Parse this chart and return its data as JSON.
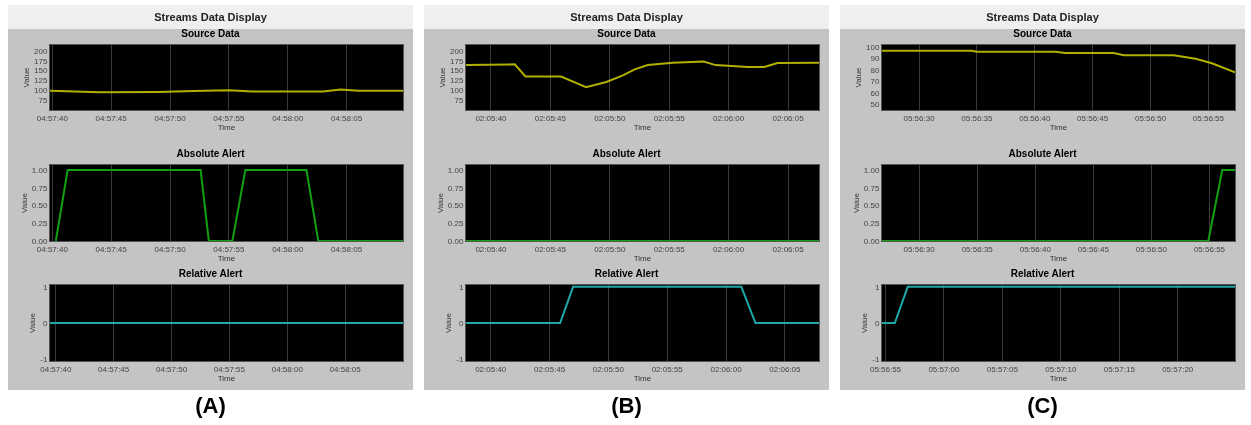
{
  "chart_data": [
    {
      "type": "line",
      "title": "Source Data",
      "xlabel": "Time",
      "ylabel": "Value",
      "annotations": [
        "Streams Data Display"
      ],
      "grid": "x",
      "xlim": [
        4.961056,
        4.969389
      ],
      "xticks": [
        {
          "value": 4.961111,
          "label": "04:57:40"
        },
        {
          "value": 4.9625,
          "label": "04:57:45"
        },
        {
          "value": 4.963889,
          "label": "04:57:50"
        },
        {
          "value": 4.965278,
          "label": "04:57:55"
        },
        {
          "value": 4.966667,
          "label": "04:58:00"
        },
        {
          "value": 4.968056,
          "label": "04:58:05"
        }
      ],
      "ylim": [
        50,
        215
      ],
      "yticks": [
        75,
        100,
        125,
        150,
        175,
        200
      ],
      "series": [
        {
          "color": "#b0b000",
          "x": [
            4.961056,
            4.962222,
            4.963611,
            4.964444,
            4.965278,
            4.965833,
            4.9675,
            4.967917,
            4.968333,
            4.969389
          ],
          "values": [
            99,
            95,
            96,
            98,
            100,
            97,
            97,
            102,
            99,
            99
          ]
        }
      ]
    },
    {
      "type": "line",
      "title": "Absolute Alert",
      "xlabel": "Time",
      "ylabel": "Value",
      "grid": "x",
      "xlim": [
        4.961056,
        4.969389
      ],
      "xticks": [
        {
          "value": 4.961111,
          "label": "04:57:40"
        },
        {
          "value": 4.9625,
          "label": "04:57:45"
        },
        {
          "value": 4.963889,
          "label": "04:57:50"
        },
        {
          "value": 4.965278,
          "label": "04:57:55"
        },
        {
          "value": 4.966667,
          "label": "04:58:00"
        },
        {
          "value": 4.968056,
          "label": "04:58:05"
        }
      ],
      "ylim": [
        0,
        1.07
      ],
      "yticks": [
        {
          "value": 0,
          "label": "0.00"
        },
        {
          "value": 0.25,
          "label": "0.25"
        },
        {
          "value": 0.5,
          "label": "0.50"
        },
        {
          "value": 0.75,
          "label": "0.75"
        },
        {
          "value": 1,
          "label": "1.00"
        }
      ],
      "series": [
        {
          "color": "#10a010",
          "x": [
            4.961194,
            4.961472,
            4.964611,
            4.964806,
            4.965361,
            4.965667,
            4.967111,
            4.967389,
            4.969389
          ],
          "values": [
            0,
            1,
            1,
            0,
            0,
            1,
            1,
            0,
            0
          ]
        }
      ]
    },
    {
      "type": "line",
      "title": "Relative Alert",
      "xlabel": "Time",
      "ylabel": "Value",
      "annotations": [
        "(A)"
      ],
      "grid": "x",
      "xlim": [
        4.960972,
        4.969444
      ],
      "xticks": [
        {
          "value": 4.961111,
          "label": "04:57:40"
        },
        {
          "value": 4.9625,
          "label": "04:57:45"
        },
        {
          "value": 4.963889,
          "label": "04:57:50"
        },
        {
          "value": 4.965278,
          "label": "04:57:55"
        },
        {
          "value": 4.966667,
          "label": "04:58:00"
        },
        {
          "value": 4.968056,
          "label": "04:58:05"
        }
      ],
      "ylim": [
        -1.05,
        1.05
      ],
      "yticks": [
        -1,
        0,
        1
      ],
      "series": [
        {
          "color": "#20a8a8",
          "x": [
            4.960972,
            4.969444
          ],
          "values": [
            0,
            0
          ]
        }
      ]
    },
    {
      "type": "line",
      "title": "Source Data",
      "xlabel": "Time",
      "ylabel": "Value",
      "annotations": [
        "Streams Data Display"
      ],
      "grid": "x",
      "xlim": [
        2.093861,
        2.102111
      ],
      "xticks": [
        {
          "value": 2.094444,
          "label": "02:05:40"
        },
        {
          "value": 2.095833,
          "label": "02:05:45"
        },
        {
          "value": 2.097222,
          "label": "02:05:50"
        },
        {
          "value": 2.098611,
          "label": "02:05:55"
        },
        {
          "value": 2.1,
          "label": "02:06:00"
        },
        {
          "value": 2.101389,
          "label": "02:06:05"
        }
      ],
      "ylim": [
        50,
        215
      ],
      "yticks": [
        75,
        100,
        125,
        150,
        175,
        200
      ],
      "series": [
        {
          "color": "#b0b000",
          "x": [
            2.093861,
            2.095,
            2.09525,
            2.096083,
            2.096667,
            2.097139,
            2.097528,
            2.097806,
            2.098111,
            2.098694,
            2.099417,
            2.099694,
            2.100444,
            2.100833,
            2.101139,
            2.102111
          ],
          "values": [
            164,
            166,
            135,
            135,
            108,
            121,
            138,
            153,
            164,
            170,
            173,
            164,
            159,
            159,
            169,
            170
          ]
        }
      ]
    },
    {
      "type": "line",
      "title": "Absolute Alert",
      "xlabel": "Time",
      "ylabel": "Value",
      "grid": "x",
      "xlim": [
        2.093861,
        2.102111
      ],
      "xticks": [
        {
          "value": 2.094444,
          "label": "02:05:40"
        },
        {
          "value": 2.095833,
          "label": "02:05:45"
        },
        {
          "value": 2.097222,
          "label": "02:05:50"
        },
        {
          "value": 2.098611,
          "label": "02:05:55"
        },
        {
          "value": 2.1,
          "label": "02:06:00"
        },
        {
          "value": 2.101389,
          "label": "02:06:05"
        }
      ],
      "ylim": [
        0,
        1.07
      ],
      "yticks": [
        {
          "value": 0,
          "label": "0.00"
        },
        {
          "value": 0.25,
          "label": "0.25"
        },
        {
          "value": 0.5,
          "label": "0.50"
        },
        {
          "value": 0.75,
          "label": "0.75"
        },
        {
          "value": 1,
          "label": "1.00"
        }
      ],
      "series": [
        {
          "color": "#10a010",
          "x": [
            2.093861,
            2.102111
          ],
          "values": [
            0,
            0
          ]
        }
      ]
    },
    {
      "type": "line",
      "title": "Relative Alert",
      "xlabel": "Time",
      "ylabel": "Value",
      "annotations": [
        "(B)"
      ],
      "grid": "x",
      "xlim": [
        2.093861,
        2.102194
      ],
      "xticks": [
        {
          "value": 2.094444,
          "label": "02:05:40"
        },
        {
          "value": 2.095833,
          "label": "02:05:45"
        },
        {
          "value": 2.097222,
          "label": "02:05:50"
        },
        {
          "value": 2.098611,
          "label": "02:05:55"
        },
        {
          "value": 2.1,
          "label": "02:06:00"
        },
        {
          "value": 2.101389,
          "label": "02:06:05"
        }
      ],
      "ylim": [
        -1.05,
        1.05
      ],
      "yticks": [
        -1,
        0,
        1
      ],
      "series": [
        {
          "color": "#20a8a8",
          "x": [
            2.093861,
            2.096083,
            2.096389,
            2.100361,
            2.100694,
            2.102194
          ],
          "values": [
            0,
            0,
            1,
            1,
            0,
            0
          ]
        }
      ]
    },
    {
      "type": "line",
      "title": "Source Data",
      "xlabel": "Time",
      "ylabel": "Value",
      "annotations": [
        "Streams Data Display"
      ],
      "grid": "x",
      "xlim": [
        5.940778,
        5.94925
      ],
      "xticks": [
        {
          "value": 5.941667,
          "label": "05:56:30"
        },
        {
          "value": 5.943056,
          "label": "05:56:35"
        },
        {
          "value": 5.944444,
          "label": "05:56:40"
        },
        {
          "value": 5.945833,
          "label": "05:56:45"
        },
        {
          "value": 5.947222,
          "label": "05:56:50"
        },
        {
          "value": 5.948611,
          "label": "05:56:55"
        }
      ],
      "ylim": [
        45,
        102
      ],
      "yticks": [
        50,
        60,
        70,
        80,
        90,
        100
      ],
      "series": [
        {
          "color": "#b0b000",
          "x": [
            5.940778,
            5.942917,
            5.943056,
            5.944944,
            5.945167,
            5.946333,
            5.946583,
            5.947778,
            5.948306,
            5.948694,
            5.94925
          ],
          "values": [
            97,
            97,
            96,
            96,
            95,
            95,
            93,
            93,
            90,
            86,
            78
          ]
        }
      ]
    },
    {
      "type": "line",
      "title": "Absolute Alert",
      "xlabel": "Time",
      "ylabel": "Value",
      "grid": "x",
      "xlim": [
        5.940778,
        5.949222
      ],
      "xticks": [
        {
          "value": 5.941667,
          "label": "05:56:30"
        },
        {
          "value": 5.943056,
          "label": "05:56:35"
        },
        {
          "value": 5.944444,
          "label": "05:56:40"
        },
        {
          "value": 5.945833,
          "label": "05:56:45"
        },
        {
          "value": 5.947222,
          "label": "05:56:50"
        },
        {
          "value": 5.948611,
          "label": "05:56:55"
        }
      ],
      "ylim": [
        0,
        1.07
      ],
      "yticks": [
        {
          "value": 0,
          "label": "0.00"
        },
        {
          "value": 0.25,
          "label": "0.25"
        },
        {
          "value": 0.5,
          "label": "0.50"
        },
        {
          "value": 0.75,
          "label": "0.75"
        },
        {
          "value": 1,
          "label": "1.00"
        }
      ],
      "series": [
        {
          "color": "#10a010",
          "x": [
            5.940778,
            5.948583,
            5.948917,
            5.949222
          ],
          "values": [
            0,
            0,
            1,
            1
          ]
        }
      ]
    },
    {
      "type": "line",
      "title": "Relative Alert",
      "xlabel": "Time",
      "ylabel": "Value",
      "annotations": [
        "(C)"
      ],
      "grid": "x",
      "xlim": [
        5.948528,
        5.956917
      ],
      "xticks": [
        {
          "value": 5.948611,
          "label": "05:56:55"
        },
        {
          "value": 5.95,
          "label": "05:57:00"
        },
        {
          "value": 5.951389,
          "label": "05:57:05"
        },
        {
          "value": 5.952778,
          "label": "05:57:10"
        },
        {
          "value": 5.954167,
          "label": "05:57:15"
        },
        {
          "value": 5.955556,
          "label": "05:57:20"
        }
      ],
      "ylim": [
        -1.05,
        1.05
      ],
      "yticks": [
        -1,
        0,
        1
      ],
      "series": [
        {
          "color": "#20a8a8",
          "x": [
            5.948528,
            5.948833,
            5.949139,
            5.956917
          ],
          "values": [
            0,
            0,
            1,
            1
          ]
        }
      ]
    }
  ]
}
